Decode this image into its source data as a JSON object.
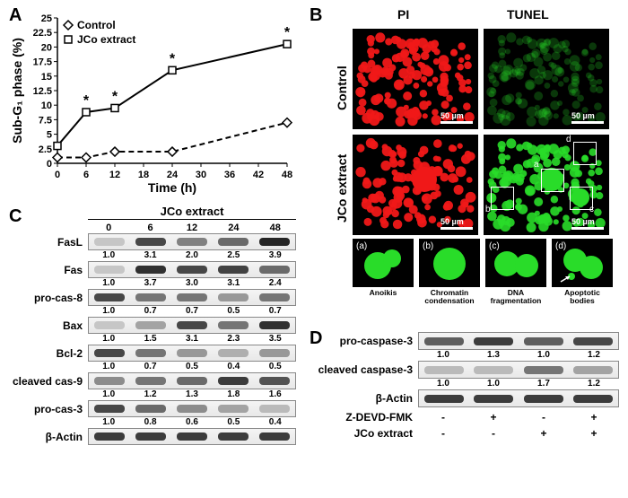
{
  "panelA": {
    "label": "A",
    "type": "line",
    "xlabel": "Time (h)",
    "ylabel": "Sub-G₁ phase (%)",
    "xlim": [
      0,
      48
    ],
    "ylim": [
      0,
      25
    ],
    "xtick_step": 6,
    "ytick_step": 2.5,
    "series": [
      {
        "name": "Control",
        "marker": "diamond",
        "fill": "#ffffff",
        "stroke": "#000000",
        "dash": "6 4",
        "x": [
          0,
          6,
          12,
          24,
          48
        ],
        "y": [
          1.0,
          1.0,
          2.0,
          2.0,
          7.0
        ],
        "sig": [
          false,
          false,
          false,
          false,
          false
        ]
      },
      {
        "name": "JCo extract",
        "marker": "square",
        "fill": "#ffffff",
        "stroke": "#000000",
        "dash": "",
        "x": [
          0,
          6,
          12,
          24,
          48
        ],
        "y": [
          3.0,
          8.8,
          9.5,
          16.0,
          20.5
        ],
        "sig": [
          false,
          true,
          true,
          true,
          true
        ]
      }
    ],
    "axis_color": "#000000",
    "label_fontsize": 14,
    "tick_fontsize": 11,
    "line_width": 2
  },
  "panelB": {
    "label": "B",
    "col_labels": [
      "PI",
      "TUNEL"
    ],
    "row_labels": [
      "Control",
      "JCo extract"
    ],
    "colors": {
      "pi_red": "#f01818",
      "tunel_green": "#29dc29",
      "background": "#000000",
      "box": "#ffffff"
    },
    "scale_bar": "50 µm",
    "insets": [
      {
        "id": "a",
        "caption": "Anoikis"
      },
      {
        "id": "b",
        "caption": "Chromatin condensation"
      },
      {
        "id": "c",
        "caption": "DNA fragmentation"
      },
      {
        "id": "d",
        "caption": "Apoptotic bodies"
      }
    ]
  },
  "panelC": {
    "label": "C",
    "title": "JCo extract",
    "timepoints": [
      "0",
      "6",
      "12",
      "24",
      "48"
    ],
    "rows": [
      {
        "name": "FasL",
        "vals": [
          "1.0",
          "3.1",
          "2.0",
          "2.5",
          "3.9"
        ],
        "intens": [
          0.25,
          0.8,
          0.55,
          0.65,
          0.95
        ]
      },
      {
        "name": "Fas",
        "vals": [
          "1.0",
          "3.7",
          "3.0",
          "3.1",
          "2.4"
        ],
        "intens": [
          0.25,
          0.9,
          0.8,
          0.82,
          0.65
        ]
      },
      {
        "name": "pro-cas-8",
        "vals": [
          "1.0",
          "0.7",
          "0.7",
          "0.5",
          "0.7"
        ],
        "intens": [
          0.8,
          0.6,
          0.6,
          0.45,
          0.6
        ]
      },
      {
        "name": "Bax",
        "vals": [
          "1.0",
          "1.5",
          "3.1",
          "2.3",
          "3.5"
        ],
        "intens": [
          0.25,
          0.4,
          0.8,
          0.6,
          0.9
        ]
      },
      {
        "name": "Bcl-2",
        "vals": [
          "1.0",
          "0.7",
          "0.5",
          "0.4",
          "0.5"
        ],
        "intens": [
          0.8,
          0.6,
          0.45,
          0.35,
          0.45
        ]
      },
      {
        "name": "cleaved cas-9",
        "vals": [
          "1.0",
          "1.2",
          "1.3",
          "1.8",
          "1.6"
        ],
        "intens": [
          0.5,
          0.6,
          0.65,
          0.85,
          0.75
        ]
      },
      {
        "name": "pro-cas-3",
        "vals": [
          "1.0",
          "0.8",
          "0.6",
          "0.5",
          "0.4"
        ],
        "intens": [
          0.8,
          0.65,
          0.5,
          0.4,
          0.3
        ]
      },
      {
        "name": "β-Actin",
        "vals": null,
        "intens": [
          0.85,
          0.85,
          0.85,
          0.85,
          0.85
        ]
      }
    ]
  },
  "panelD": {
    "label": "D",
    "rows": [
      {
        "name": "pro-caspase-3",
        "vals": [
          "1.0",
          "1.3",
          "1.0",
          "1.2"
        ],
        "intens": [
          0.7,
          0.85,
          0.7,
          0.8
        ]
      },
      {
        "name": "cleaved caspase-3",
        "vals": [
          "1.0",
          "1.0",
          "1.7",
          "1.2"
        ],
        "intens": [
          0.3,
          0.3,
          0.6,
          0.4
        ]
      },
      {
        "name": "β-Actin",
        "vals": null,
        "intens": [
          0.85,
          0.85,
          0.85,
          0.85
        ]
      }
    ],
    "conditions": [
      {
        "name": "Z-DEVD-FMK",
        "vals": [
          "-",
          "+",
          "-",
          "+"
        ]
      },
      {
        "name": "JCo extract",
        "vals": [
          "-",
          "-",
          "+",
          "+"
        ]
      }
    ]
  }
}
